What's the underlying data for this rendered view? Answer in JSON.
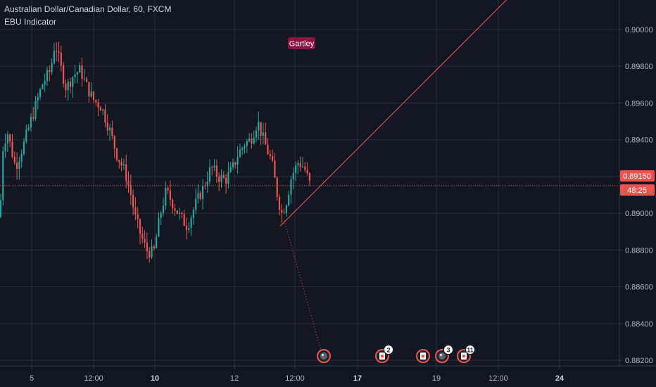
{
  "header": {
    "symbol_title": "Australian Dollar/Canadian Dollar, 60, FXCM",
    "indicator": "EBU Indicator"
  },
  "annotation": {
    "pattern_label": "Gartley"
  },
  "price_axis": {
    "current_price": "0.89150",
    "countdown": "48:25"
  },
  "colors": {
    "background": "#131722",
    "grid": "#2a2e39",
    "up": "#26a69a",
    "down": "#ef5350",
    "drawing": "#f05656",
    "pattern_badge": "#8e1341",
    "text": "#b2b5be"
  },
  "event_icons": [
    {
      "kind": "dividend",
      "count": ""
    },
    {
      "kind": "earnings",
      "count": "2"
    },
    {
      "kind": "earnings",
      "count": ""
    },
    {
      "kind": "dividend",
      "count": "3"
    },
    {
      "kind": "earnings",
      "count": "11"
    }
  ],
  "chart_data": {
    "type": "candlestick",
    "title": "Australian Dollar/Canadian Dollar, 60, FXCM",
    "y_ticks": [
      "0.90000",
      "0.89800",
      "0.89600",
      "0.89400",
      "0.89200",
      "0.89000",
      "0.88800",
      "0.88600",
      "0.88400",
      "0.88200"
    ],
    "ylim": [
      0.8817,
      0.9016
    ],
    "x_ticks": [
      "5",
      "12:00",
      "10",
      "12",
      "12:00",
      "17",
      "19",
      "12:00",
      "24"
    ],
    "bold_x_ticks": [
      "10",
      "17",
      "24"
    ],
    "grid": true,
    "last_price": 0.8915,
    "price_path": [
      [
        0,
        0.8898
      ],
      [
        4,
        0.8935
      ],
      [
        10,
        0.8945
      ],
      [
        22,
        0.8925
      ],
      [
        34,
        0.8938
      ],
      [
        46,
        0.8953
      ],
      [
        60,
        0.897
      ],
      [
        72,
        0.8978
      ],
      [
        78,
        0.8993
      ],
      [
        86,
        0.898
      ],
      [
        94,
        0.8968
      ],
      [
        104,
        0.8975
      ],
      [
        114,
        0.8978
      ],
      [
        122,
        0.897
      ],
      [
        132,
        0.8962
      ],
      [
        144,
        0.8958
      ],
      [
        156,
        0.8945
      ],
      [
        166,
        0.8932
      ],
      [
        178,
        0.8922
      ],
      [
        186,
        0.891
      ],
      [
        192,
        0.8898
      ],
      [
        200,
        0.8888
      ],
      [
        208,
        0.888
      ],
      [
        218,
        0.8878
      ],
      [
        228,
        0.89
      ],
      [
        236,
        0.8912
      ],
      [
        246,
        0.8905
      ],
      [
        256,
        0.8898
      ],
      [
        266,
        0.8893
      ],
      [
        278,
        0.8905
      ],
      [
        290,
        0.8915
      ],
      [
        300,
        0.8925
      ],
      [
        310,
        0.892
      ],
      [
        320,
        0.8918
      ],
      [
        330,
        0.8924
      ],
      [
        338,
        0.8932
      ],
      [
        348,
        0.8938
      ],
      [
        356,
        0.894
      ],
      [
        366,
        0.895
      ],
      [
        376,
        0.8938
      ],
      [
        386,
        0.8928
      ],
      [
        394,
        0.891
      ],
      [
        400,
        0.89
      ],
      [
        406,
        0.8905
      ],
      [
        414,
        0.892
      ],
      [
        424,
        0.8928
      ],
      [
        432,
        0.8925
      ],
      [
        440,
        0.8916
      ]
    ],
    "series": [
      {
        "name": "",
        "kind": "trend_line",
        "points": [
          [
            398,
            0.8893
          ],
          [
            722,
            0.9017
          ]
        ]
      },
      {
        "name": "",
        "kind": "dotted_projection",
        "points": [
          [
            404,
            0.8896
          ],
          [
            460,
            0.882
          ]
        ]
      }
    ]
  }
}
